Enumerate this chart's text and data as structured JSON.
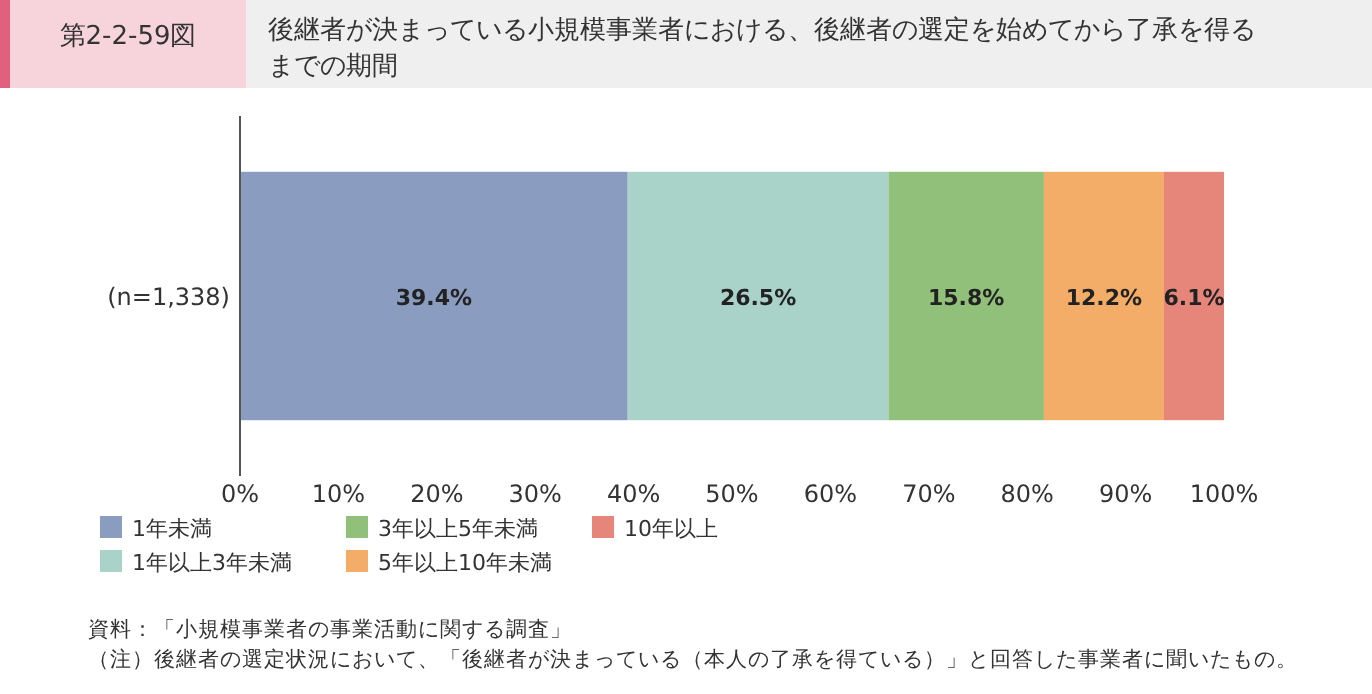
{
  "chart_data": {
    "type": "bar",
    "orientation": "horizontal",
    "stacked": true,
    "title": "第2-2-59図",
    "subtitle": "後継者が決まっている小規模事業者における、後継者の選定を始めてから了承を得るまでの期間",
    "categories": [
      "(n=1,338)"
    ],
    "series": [
      {
        "name": "1年未満",
        "color": "#8a9dc1",
        "values": [
          39.4
        ],
        "value_labels": [
          "39.4%"
        ]
      },
      {
        "name": "1年以上3年未満",
        "color": "#a9d2c9",
        "values": [
          26.5
        ],
        "value_labels": [
          "26.5%"
        ]
      },
      {
        "name": "3年以上5年未満",
        "color": "#90c07a",
        "values": [
          15.8
        ],
        "value_labels": [
          "15.8%"
        ]
      },
      {
        "name": "5年以上10年未満",
        "color": "#f4ad69",
        "values": [
          12.2
        ],
        "value_labels": [
          "12.2%"
        ]
      },
      {
        "name": "10年以上",
        "color": "#e6867b",
        "values": [
          6.1
        ],
        "value_labels": [
          "6.1%"
        ]
      }
    ],
    "xlim": [
      0,
      100
    ],
    "xticks": [
      {
        "value": 0,
        "label": "0%"
      },
      {
        "value": 10,
        "label": "10%"
      },
      {
        "value": 20,
        "label": "20%"
      },
      {
        "value": 30,
        "label": "30%"
      },
      {
        "value": 40,
        "label": "40%"
      },
      {
        "value": 50,
        "label": "50%"
      },
      {
        "value": 60,
        "label": "60%"
      },
      {
        "value": 70,
        "label": "70%"
      },
      {
        "value": 80,
        "label": "80%"
      },
      {
        "value": 90,
        "label": "90%"
      },
      {
        "value": 100,
        "label": "100%"
      }
    ],
    "grid": false,
    "legend": "bottom left",
    "annotations": [
      "資料：「小規模事業者の事業活動に関する調査」",
      "（注）後継者の選定状況において、「後継者が決まっている（本人の了承を得ている）」と回答した事業者に聞いたもの。"
    ]
  }
}
